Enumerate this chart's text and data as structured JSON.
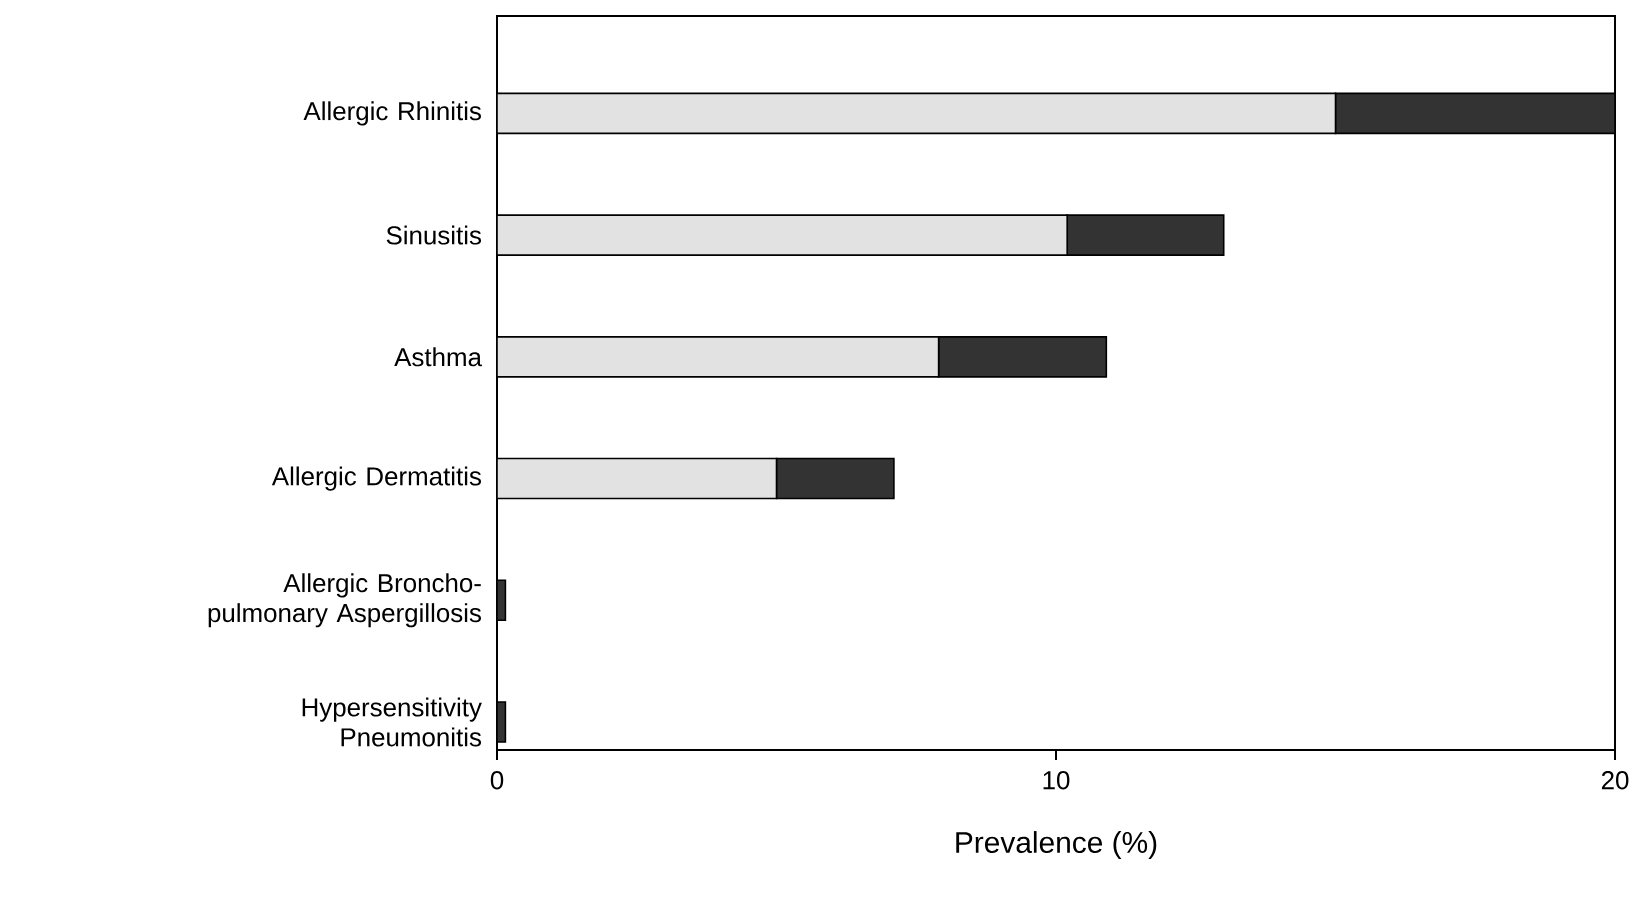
{
  "chart_data": {
    "type": "bar",
    "orientation": "horizontal",
    "stacked": true,
    "xlabel": "Prevalence (%)",
    "categories": [
      "Allergic Rhinitis",
      "Sinusitis",
      "Asthma",
      "Allergic Dermatitis",
      "Allergic Broncho-pulmonary Aspergillosis",
      "Hypersensitivity Pneumonitis"
    ],
    "series": [
      {
        "color": "#e2e2e2",
        "values": [
          15,
          10.2,
          7.9,
          5.0,
          0,
          0
        ]
      },
      {
        "color": "#333333",
        "values": [
          5,
          2.8,
          3.0,
          2.1,
          0.15,
          0.15
        ]
      }
    ],
    "xlim": [
      0,
      20
    ],
    "xticks": [
      0,
      10,
      20
    ]
  }
}
